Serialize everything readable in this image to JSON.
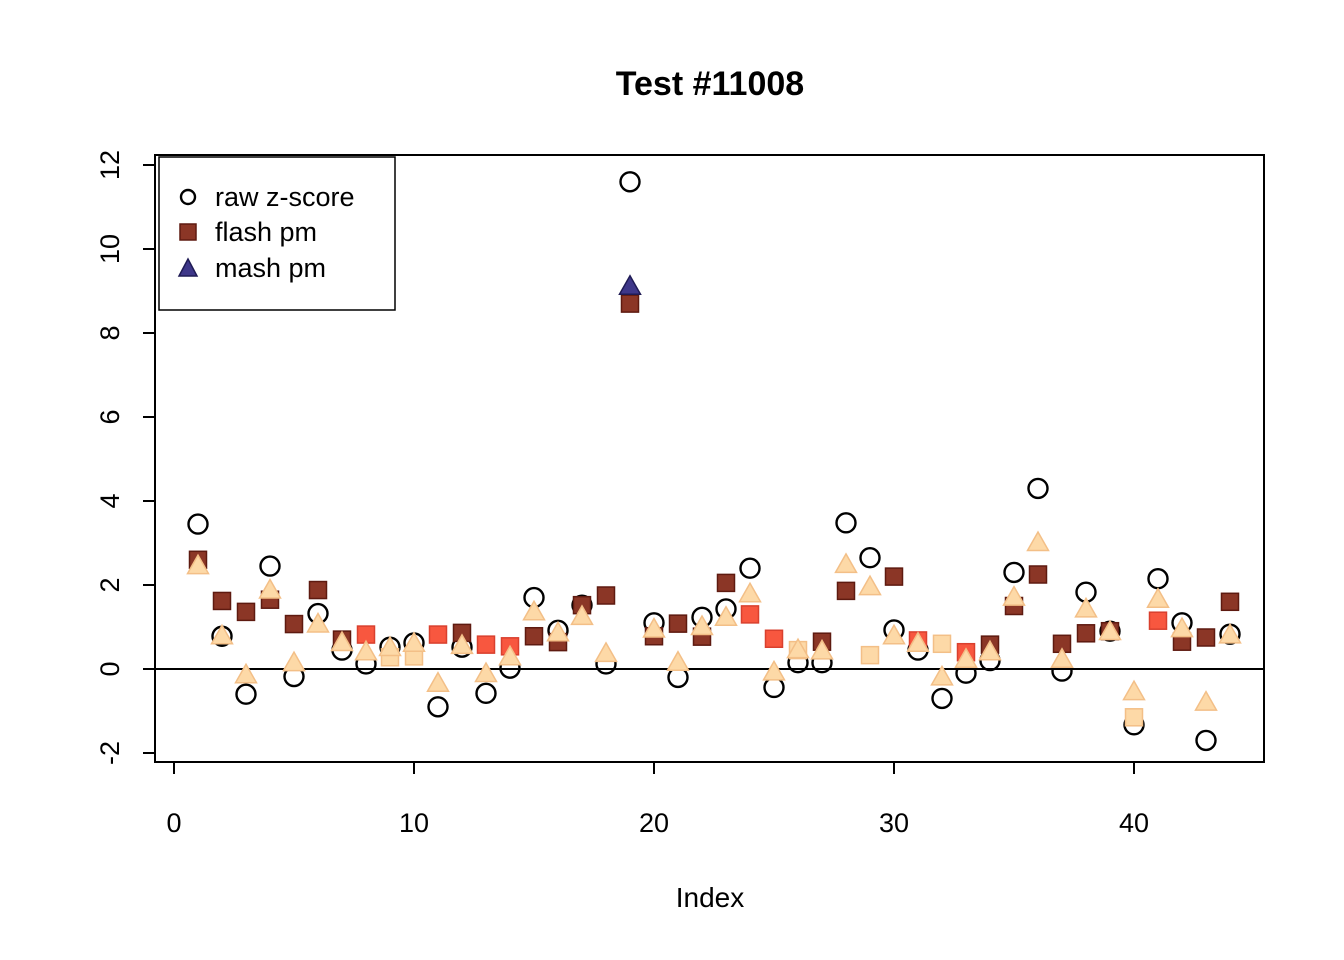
{
  "title": "Test #11008",
  "chart_data": {
    "type": "scatter",
    "title": "Test #11008",
    "xlabel": "Index",
    "ylabel": "",
    "xlim": [
      -0.72,
      45.72
    ],
    "ylim": [
      -2.21,
      12.24
    ],
    "x_ticks": [
      0,
      10,
      20,
      30,
      40
    ],
    "y_ticks": [
      -2,
      0,
      2,
      4,
      6,
      8,
      10,
      12
    ],
    "grid": false,
    "zero_line_y": 0,
    "legend_position": "top-left",
    "palette": {
      "dark": {
        "fill": "#8b3626",
        "stroke": "#5e1a10"
      },
      "red": {
        "fill": "#f8573f",
        "stroke": "#d9402e"
      },
      "peach": {
        "fill": "#fdd9a7",
        "stroke": "#f3bf87"
      },
      "navy": {
        "fill": "#3e3789",
        "stroke": "#1f1b55"
      },
      "black": {
        "fill": "none",
        "stroke": "#000000"
      }
    },
    "legend": [
      {
        "label": "raw z-score",
        "marker": "circle-open",
        "color": "black"
      },
      {
        "label": "flash pm",
        "marker": "square",
        "color": "dark"
      },
      {
        "label": "mash pm",
        "marker": "triangle",
        "color": "navy"
      }
    ],
    "x": [
      1,
      2,
      3,
      4,
      5,
      6,
      7,
      8,
      9,
      10,
      11,
      12,
      13,
      14,
      15,
      16,
      17,
      18,
      19,
      20,
      21,
      22,
      23,
      24,
      25,
      26,
      27,
      28,
      29,
      30,
      31,
      32,
      33,
      34,
      35,
      36,
      37,
      38,
      39,
      40,
      41,
      42,
      43,
      44
    ],
    "series": [
      {
        "name": "raw z-score",
        "marker": "circle-open",
        "values": [
          3.45,
          0.78,
          -0.6,
          2.45,
          -0.18,
          1.32,
          0.45,
          0.12,
          0.52,
          0.62,
          -0.9,
          0.52,
          -0.58,
          0.02,
          1.7,
          0.92,
          1.52,
          0.12,
          11.6,
          1.1,
          -0.2,
          1.23,
          1.43,
          2.4,
          -0.44,
          0.15,
          0.15,
          3.48,
          2.65,
          0.93,
          0.45,
          -0.7,
          -0.1,
          0.2,
          2.3,
          4.3,
          -0.05,
          1.83,
          0.9,
          -1.33,
          2.15,
          1.1,
          -1.7,
          0.83
        ],
        "colors": [
          "black",
          "black",
          "black",
          "black",
          "black",
          "black",
          "black",
          "black",
          "black",
          "black",
          "black",
          "black",
          "black",
          "black",
          "black",
          "black",
          "black",
          "black",
          "black",
          "black",
          "black",
          "black",
          "black",
          "black",
          "black",
          "black",
          "black",
          "black",
          "black",
          "black",
          "black",
          "black",
          "black",
          "black",
          "black",
          "black",
          "black",
          "black",
          "black",
          "black",
          "black",
          "black",
          "black",
          "black"
        ]
      },
      {
        "name": "flash pm",
        "marker": "square",
        "values": [
          2.6,
          1.62,
          1.36,
          1.65,
          1.07,
          1.88,
          0.7,
          0.82,
          0.28,
          0.3,
          0.82,
          0.86,
          0.58,
          0.54,
          0.78,
          0.64,
          1.52,
          1.75,
          8.7,
          0.78,
          1.08,
          0.77,
          2.05,
          1.3,
          0.72,
          0.45,
          0.65,
          1.86,
          0.33,
          2.2,
          0.68,
          0.6,
          0.4,
          0.58,
          1.5,
          2.25,
          0.6,
          0.85,
          0.9,
          -1.15,
          1.15,
          0.65,
          0.75,
          1.6
        ],
        "colors": [
          "dark",
          "dark",
          "dark",
          "dark",
          "dark",
          "dark",
          "dark",
          "red",
          "peach",
          "peach",
          "red",
          "dark",
          "red",
          "red",
          "dark",
          "dark",
          "dark",
          "dark",
          "dark",
          "dark",
          "dark",
          "dark",
          "dark",
          "red",
          "red",
          "peach",
          "dark",
          "dark",
          "peach",
          "dark",
          "red",
          "peach",
          "red",
          "dark",
          "dark",
          "dark",
          "dark",
          "dark",
          "dark",
          "peach",
          "red",
          "dark",
          "dark",
          "dark"
        ]
      },
      {
        "name": "mash pm",
        "marker": "triangle",
        "values": [
          2.45,
          0.78,
          -0.15,
          1.87,
          0.14,
          1.06,
          0.62,
          0.4,
          0.5,
          0.6,
          -0.35,
          0.55,
          -0.12,
          0.28,
          1.35,
          0.85,
          1.24,
          0.36,
          9.1,
          0.94,
          0.15,
          1.0,
          1.22,
          1.78,
          -0.08,
          0.45,
          0.42,
          2.48,
          1.95,
          0.78,
          0.6,
          -0.2,
          0.22,
          0.4,
          1.7,
          3.0,
          0.22,
          1.42,
          0.88,
          -0.55,
          1.65,
          0.95,
          -0.8,
          0.8
        ],
        "colors": [
          "peach",
          "peach",
          "peach",
          "peach",
          "peach",
          "peach",
          "peach",
          "peach",
          "peach",
          "peach",
          "peach",
          "peach",
          "peach",
          "peach",
          "peach",
          "peach",
          "peach",
          "peach",
          "navy",
          "peach",
          "peach",
          "peach",
          "peach",
          "peach",
          "peach",
          "peach",
          "peach",
          "peach",
          "peach",
          "peach",
          "peach",
          "peach",
          "peach",
          "peach",
          "peach",
          "peach",
          "peach",
          "peach",
          "peach",
          "peach",
          "peach",
          "peach",
          "peach",
          "peach"
        ]
      }
    ]
  }
}
